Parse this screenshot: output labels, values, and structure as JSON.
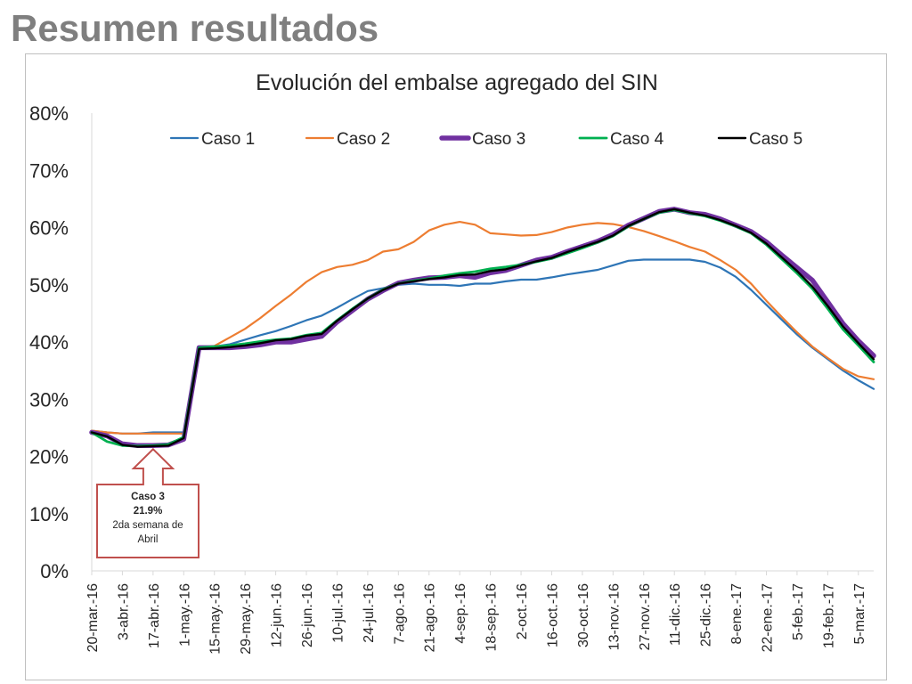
{
  "page": {
    "title": "Resumen resultados"
  },
  "chart_data": {
    "type": "line",
    "title": "Evolución del embalse agregado del SIN",
    "xlabel": "",
    "ylabel": "",
    "ylim": [
      0,
      80
    ],
    "yticks": [
      "0%",
      "10%",
      "20%",
      "30%",
      "40%",
      "50%",
      "60%",
      "70%",
      "80%"
    ],
    "grid": false,
    "legend_position": "top",
    "xtick_labels": [
      "20-mar.-16",
      "3-abr.-16",
      "17-abr.-16",
      "1-may.-16",
      "15-may.-16",
      "29-may.-16",
      "12-jun.-16",
      "26-jun.-16",
      "10-jul.-16",
      "24-jul.-16",
      "7-ago.-16",
      "21-ago.-16",
      "4-sep.-16",
      "18-sep.-16",
      "2-oct.-16",
      "16-oct.-16",
      "30-oct.-16",
      "13-nov.-16",
      "27-nov.-16",
      "11-dic.-16",
      "25-dic.-16",
      "8-ene.-17",
      "22-ene.-17",
      "5-feb.-17",
      "19-feb.-17",
      "5-mar.-17"
    ],
    "x": [
      "20-mar.-16",
      "27-mar.-16",
      "3-abr.-16",
      "10-abr.-16",
      "17-abr.-16",
      "24-abr.-16",
      "1-may.-16",
      "8-may.-16",
      "15-may.-16",
      "22-may.-16",
      "29-may.-16",
      "5-jun.-16",
      "12-jun.-16",
      "19-jun.-16",
      "26-jun.-16",
      "3-jul.-16",
      "10-jul.-16",
      "17-jul.-16",
      "24-jul.-16",
      "31-jul.-16",
      "7-ago.-16",
      "14-ago.-16",
      "21-ago.-16",
      "28-ago.-16",
      "4-sep.-16",
      "11-sep.-16",
      "18-sep.-16",
      "25-sep.-16",
      "2-oct.-16",
      "9-oct.-16",
      "16-oct.-16",
      "23-oct.-16",
      "30-oct.-16",
      "6-nov.-16",
      "13-nov.-16",
      "20-nov.-16",
      "27-nov.-16",
      "4-dic.-16",
      "11-dic.-16",
      "18-dic.-16",
      "25-dic.-16",
      "1-ene.-17",
      "8-ene.-17",
      "15-ene.-17",
      "22-ene.-17",
      "29-ene.-17",
      "5-feb.-17",
      "12-feb.-17",
      "19-feb.-17",
      "26-feb.-17",
      "5-mar.-17",
      "12-mar.-17"
    ],
    "series": [
      {
        "name": "Caso 1",
        "color": "#2e75b6",
        "width": 2.2,
        "values": [
          24.5,
          24.2,
          24.0,
          24.0,
          24.2,
          24.2,
          24.2,
          39.0,
          39.2,
          39.6,
          40.4,
          41.2,
          41.9,
          42.8,
          43.8,
          44.6,
          46.0,
          47.5,
          48.9,
          49.4,
          50.0,
          50.2,
          50.0,
          50.0,
          49.8,
          50.2,
          50.2,
          50.6,
          50.9,
          50.9,
          51.3,
          51.8,
          52.2,
          52.6,
          53.4,
          54.2,
          54.4,
          54.4,
          54.4,
          54.4,
          54.0,
          53.0,
          51.4,
          49.1,
          46.5,
          43.9,
          41.3,
          39.0,
          37.0,
          35.0,
          33.3,
          31.8
        ]
      },
      {
        "name": "Caso 2",
        "color": "#ed7d31",
        "width": 2.2,
        "values": [
          24.5,
          24.2,
          24.0,
          24.0,
          24.0,
          24.0,
          24.0,
          39.0,
          39.3,
          40.8,
          42.3,
          44.2,
          46.3,
          48.3,
          50.5,
          52.2,
          53.1,
          53.5,
          54.3,
          55.8,
          56.2,
          57.5,
          59.5,
          60.5,
          61.0,
          60.5,
          59.0,
          58.8,
          58.6,
          58.7,
          59.2,
          60.0,
          60.5,
          60.8,
          60.6,
          60.1,
          59.4,
          58.5,
          57.6,
          56.6,
          55.8,
          54.3,
          52.6,
          50.2,
          47.2,
          44.4,
          41.7,
          39.2,
          37.2,
          35.3,
          34.0,
          33.5
        ]
      },
      {
        "name": "Caso 3",
        "color": "#7030a0",
        "width": 5.5,
        "values": [
          24.2,
          23.6,
          22.2,
          21.9,
          21.9,
          22.0,
          23.0,
          39.0,
          39.0,
          39.0,
          39.2,
          39.5,
          40.0,
          40.0,
          40.5,
          41.0,
          43.5,
          45.5,
          47.5,
          49.0,
          50.3,
          50.8,
          51.2,
          51.3,
          51.6,
          51.3,
          52.1,
          52.5,
          53.4,
          54.3,
          54.8,
          55.8,
          56.7,
          57.6,
          58.8,
          60.4,
          61.6,
          62.8,
          63.2,
          62.6,
          62.3,
          61.5,
          60.4,
          59.3,
          57.5,
          55.2,
          53.0,
          50.8,
          47.0,
          43.2,
          40.2,
          37.6
        ]
      },
      {
        "name": "Caso 4",
        "color": "#00b050",
        "width": 2.8,
        "values": [
          24.2,
          22.6,
          21.9,
          21.8,
          21.9,
          22.1,
          23.4,
          39.0,
          39.2,
          39.4,
          39.7,
          40.1,
          40.4,
          40.6,
          41.2,
          41.6,
          43.8,
          45.8,
          47.6,
          49.2,
          50.2,
          50.7,
          51.1,
          51.6,
          52.0,
          52.3,
          52.8,
          53.1,
          53.5,
          54.0,
          54.6,
          55.5,
          56.4,
          57.4,
          58.5,
          60.2,
          61.5,
          62.6,
          63.1,
          62.5,
          62.0,
          61.2,
          60.2,
          59.0,
          57.0,
          54.5,
          52.0,
          49.3,
          45.8,
          42.2,
          39.4,
          36.5
        ]
      },
      {
        "name": "Caso 5",
        "color": "#000000",
        "width": 2.4,
        "values": [
          24.2,
          23.5,
          22.0,
          21.7,
          21.8,
          21.9,
          23.2,
          38.8,
          38.9,
          39.1,
          39.4,
          39.8,
          40.3,
          40.5,
          41.1,
          41.4,
          43.7,
          45.7,
          47.6,
          49.1,
          50.2,
          50.6,
          51.0,
          51.3,
          51.7,
          51.8,
          52.4,
          52.7,
          53.4,
          54.1,
          54.7,
          55.7,
          56.6,
          57.5,
          58.6,
          60.3,
          61.5,
          62.7,
          63.2,
          62.6,
          62.1,
          61.3,
          60.3,
          59.1,
          57.2,
          54.8,
          52.4,
          49.7,
          46.3,
          42.7,
          39.8,
          37.0
        ]
      }
    ],
    "callout": {
      "lines": [
        "Caso 3",
        "21.9%",
        "2da semana de",
        "Abril"
      ],
      "x_index": 4,
      "value": 21.9,
      "border_color": "#c0504d"
    }
  }
}
